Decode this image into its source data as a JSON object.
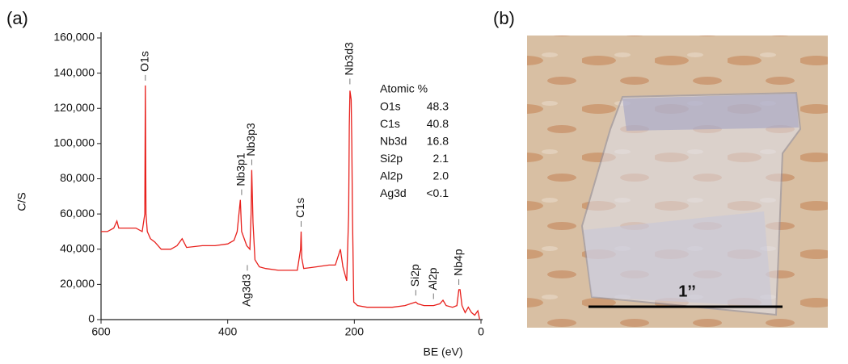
{
  "panels": [
    "(a)",
    "(b)"
  ],
  "chart_data": {
    "type": "line",
    "x_label": "BE (eV)",
    "y_label": "C/S",
    "xlim": [
      600,
      0
    ],
    "xticks": [
      600,
      400,
      200,
      0
    ],
    "ylim": [
      0,
      160000
    ],
    "yticks": [
      0,
      {
        "value": 20000,
        "label": "20,000"
      },
      {
        "value": 40000,
        "label": "40,000"
      },
      {
        "value": 60000,
        "label": "60,000"
      },
      {
        "value": 80000,
        "label": "80,000"
      },
      {
        "value": 100000,
        "label": "100,000"
      },
      {
        "value": 120000,
        "label": "120,000"
      },
      {
        "value": 140000,
        "label": "140,000"
      },
      {
        "value": 160000,
        "label": "160,000"
      }
    ],
    "x": [
      600,
      590,
      580,
      575,
      572,
      560,
      545,
      535,
      531,
      530,
      529,
      527,
      522,
      515,
      505,
      490,
      480,
      472,
      465,
      440,
      420,
      400,
      390,
      385,
      380,
      378,
      370,
      365,
      363,
      362,
      360,
      357,
      350,
      340,
      320,
      300,
      290,
      285,
      284,
      283,
      280,
      260,
      240,
      230,
      222,
      218,
      212,
      209,
      208,
      207,
      205,
      204,
      203,
      201,
      195,
      180,
      160,
      140,
      120,
      103,
      100,
      90,
      75,
      65,
      60,
      55,
      45,
      38,
      35,
      33,
      30,
      25,
      20,
      15,
      10,
      5,
      2
    ],
    "series": [
      {
        "color": "#e8201c",
        "values": [
          50000,
          50000,
          52000,
          56000,
          52000,
          52000,
          52000,
          50000,
          60000,
          133000,
          60000,
          50000,
          46000,
          44000,
          40000,
          40000,
          42000,
          46000,
          41000,
          42000,
          42000,
          43000,
          45000,
          50000,
          68000,
          50000,
          42000,
          40000,
          60000,
          85000,
          55000,
          34000,
          30000,
          29000,
          28000,
          28000,
          28000,
          40000,
          50000,
          35000,
          29000,
          30000,
          31000,
          31000,
          40000,
          30000,
          22000,
          60000,
          110000,
          130000,
          125000,
          100000,
          60000,
          10000,
          8000,
          7000,
          7000,
          7000,
          8000,
          10000,
          9000,
          8000,
          8000,
          9000,
          11000,
          8000,
          7000,
          8000,
          17000,
          17000,
          8000,
          4000,
          7000,
          4000,
          2500,
          5000,
          0
        ]
      }
    ],
    "annotations": [
      {
        "text": "O1s",
        "x": 530
      },
      {
        "text": "Nb3p1",
        "x": 378
      },
      {
        "text": "Nb3p3",
        "x": 362
      },
      {
        "text": "Ag3d3",
        "x": 369
      },
      {
        "text": "C1s",
        "x": 284
      },
      {
        "text": "Nb3d3",
        "x": 207
      },
      {
        "text": "Si2p",
        "x": 103
      },
      {
        "text": "Al2p",
        "x": 75
      },
      {
        "text": "Nb4p",
        "x": 35
      }
    ],
    "table": {
      "header": "Atomic %",
      "rows": [
        [
          "O1s",
          "48.3"
        ],
        [
          "C1s",
          "40.8"
        ],
        [
          "Nb3d",
          "16.8"
        ],
        [
          "Si2p",
          "2.1"
        ],
        [
          "Al2p",
          "2.0"
        ],
        [
          "Ag3d",
          "<0.1"
        ]
      ]
    }
  },
  "photo": {
    "scale_label": "1’’"
  }
}
